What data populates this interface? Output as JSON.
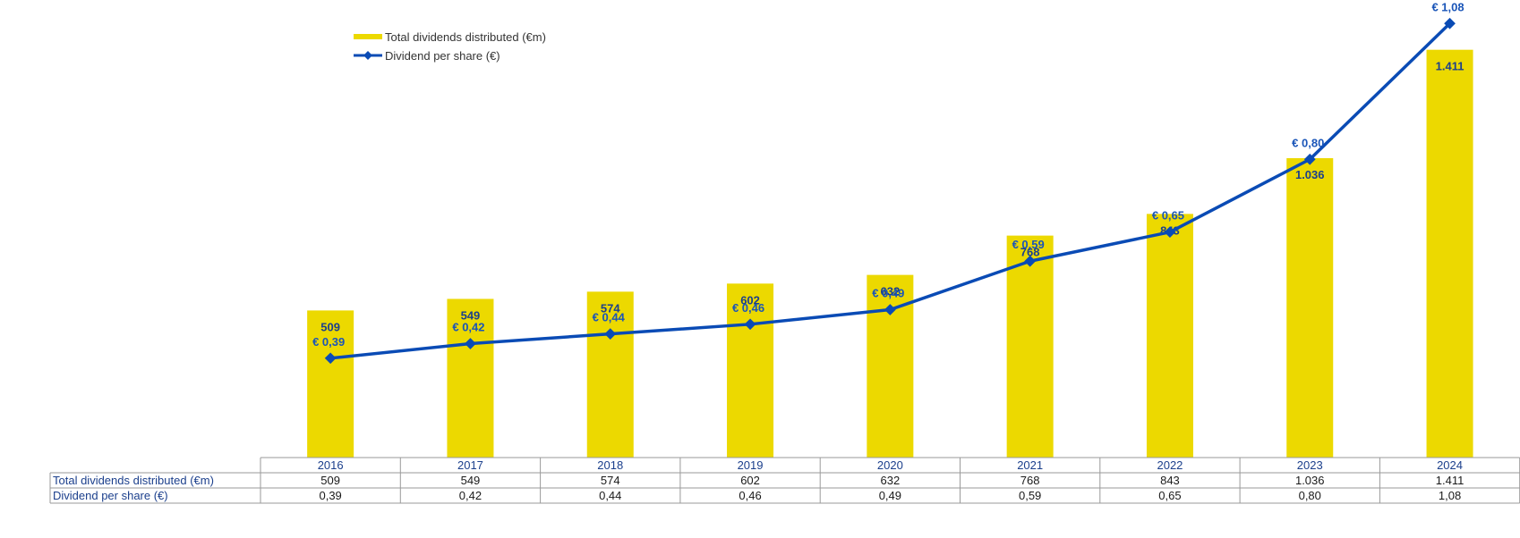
{
  "chart_data": {
    "type": "bar",
    "categories": [
      "2016",
      "2017",
      "2018",
      "2019",
      "2020",
      "2021",
      "2022",
      "2023",
      "2024"
    ],
    "series": [
      {
        "name": "Total dividends distributed (€m)",
        "kind": "bar",
        "values": [
          509,
          549,
          574,
          602,
          632,
          768,
          843,
          1036,
          1411
        ],
        "labels": [
          "509",
          "549",
          "574",
          "602",
          "632",
          "768",
          "843",
          "1.036",
          "1.411"
        ],
        "color": "#ecd900"
      },
      {
        "name": "Dividend per share (€)",
        "kind": "line",
        "values": [
          0.39,
          0.42,
          0.44,
          0.46,
          0.49,
          0.59,
          0.65,
          0.8,
          1.08
        ],
        "labels": [
          "€ 0,39",
          "€ 0,42",
          "€ 0,44",
          "€ 0,46",
          "€ 0,49",
          "€ 0,59",
          "€ 0,65",
          "€ 0,80",
          "€ 1,08"
        ],
        "color": "#0a4bb5"
      }
    ],
    "legend": "top-left",
    "grid": false,
    "table": {
      "rows": [
        {
          "label": "Total dividends distributed (€m)",
          "cells": [
            "509",
            "549",
            "574",
            "602",
            "632",
            "768",
            "843",
            "1.036",
            "1.411"
          ]
        },
        {
          "label": "Dividend per share (€)",
          "cells": [
            "0,39",
            "0,42",
            "0,44",
            "0,46",
            "0,49",
            "0,59",
            "0,65",
            "0,80",
            "1,08"
          ]
        }
      ]
    }
  }
}
